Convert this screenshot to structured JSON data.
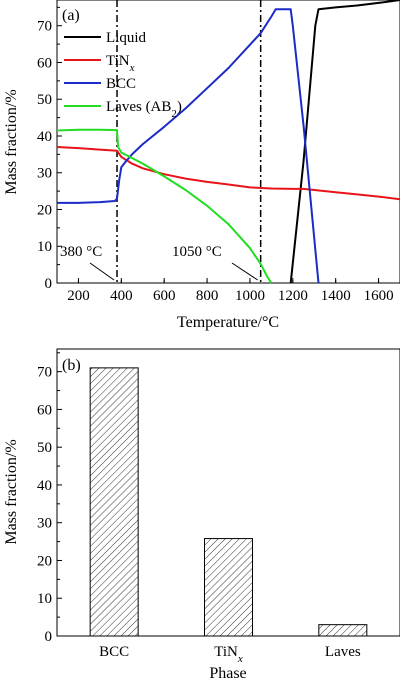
{
  "chart_data": [
    {
      "type": "line",
      "panel_label": "(a)",
      "xlabel": "Temperature/°C",
      "ylabel": "Mass fraction/%",
      "xlim": [
        100,
        1700
      ],
      "ylim": [
        0,
        77
      ],
      "xticks": [
        200,
        400,
        600,
        800,
        1000,
        1200,
        1400,
        1600
      ],
      "yticks": [
        0,
        10,
        20,
        30,
        40,
        50,
        60,
        70
      ],
      "legend_position": "top-left",
      "series": [
        {
          "name": "Liquid",
          "legend_label": "Liquid",
          "color": "#000000",
          "x": [
            1190,
            1250,
            1305,
            1320,
            1400,
            1500,
            1600,
            1700
          ],
          "y": [
            0,
            33,
            70,
            74.5,
            75,
            75.5,
            76.2,
            77
          ]
        },
        {
          "name": "TiNx",
          "legend_main": "TiN",
          "legend_sub": "x",
          "color": "#e8141a",
          "x": [
            100,
            200,
            300,
            380,
            400,
            450,
            500,
            600,
            700,
            800,
            900,
            1000,
            1100,
            1200,
            1250,
            1300,
            1400,
            1500,
            1600,
            1700
          ],
          "y": [
            37,
            36.7,
            36.3,
            36,
            34.3,
            32.5,
            31.2,
            29.6,
            28.4,
            27.5,
            26.8,
            26,
            25.7,
            25.6,
            25.6,
            25.3,
            24.7,
            24.1,
            23.5,
            22.8
          ]
        },
        {
          "name": "BCC",
          "legend_label": "BCC",
          "color": "#1c2bc7",
          "x": [
            100,
            200,
            300,
            370,
            380,
            390,
            400,
            420,
            450,
            500,
            600,
            700,
            800,
            900,
            1000,
            1050,
            1100,
            1120,
            1190,
            1200,
            1250,
            1300,
            1320
          ],
          "y": [
            21.8,
            21.8,
            22,
            22.3,
            23,
            28,
            31.5,
            33,
            35,
            37.8,
            42.5,
            47.5,
            53,
            58.5,
            64.8,
            68,
            72.5,
            74.5,
            74.5,
            70,
            43,
            12,
            0
          ]
        },
        {
          "name": "Laves (AB2)",
          "legend_main": "Laves (AB",
          "legend_sub": "2",
          "legend_tail": ")",
          "color": "#22dd22",
          "x": [
            100,
            200,
            300,
            380,
            385,
            400,
            450,
            500,
            600,
            700,
            800,
            900,
            1000,
            1050,
            1080,
            1100
          ],
          "y": [
            41.5,
            41.7,
            41.7,
            41.6,
            37,
            35.5,
            34,
            32.5,
            29,
            25.3,
            21,
            16,
            9.5,
            5.2,
            1.8,
            0
          ]
        }
      ],
      "annotations": [
        {
          "text": "380 °C",
          "x": 380,
          "y": 0
        },
        {
          "text": "1050 °C",
          "x": 1050,
          "y": 0
        }
      ]
    },
    {
      "type": "bar",
      "panel_label": "(b)",
      "xlabel": "Phase",
      "ylabel": "Mass fraction/%",
      "ylim": [
        0,
        76
      ],
      "yticks": [
        0,
        10,
        20,
        30,
        40,
        50,
        60,
        70
      ],
      "categories": [
        {
          "main": "BCC",
          "sub": ""
        },
        {
          "main": "TiN",
          "sub": "x"
        },
        {
          "main": "Laves",
          "sub": ""
        }
      ],
      "values": [
        71,
        25.8,
        3
      ],
      "hatch": "diagonal"
    }
  ]
}
